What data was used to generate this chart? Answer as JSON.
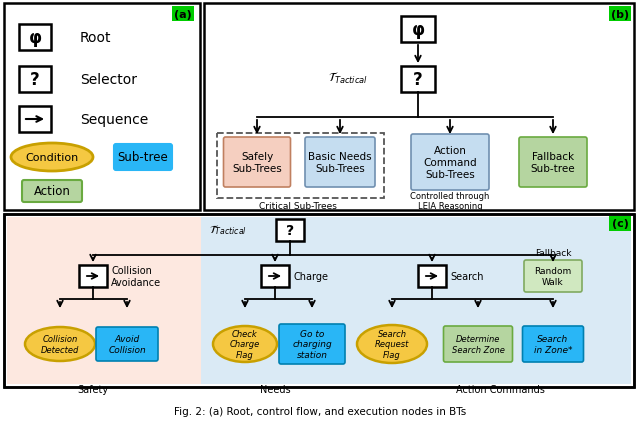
{
  "fig_width": 6.4,
  "fig_height": 4.27,
  "bg_white": "#ffffff",
  "bg_pink": "#fde8e0",
  "bg_blue": "#daeaf5",
  "panel_a": {
    "label_color": "#00cc00",
    "condition_color": "#f5c842",
    "condition_border": "#c8a000",
    "subtree_color": "#29b6f6",
    "action_color": "#b5d5a0",
    "action_border": "#6aaa40"
  },
  "panel_b": {
    "label_color": "#00cc00",
    "nodes": [
      {
        "text": "Safely\nSub-Trees",
        "color": "#f5cfc0",
        "border": "#c08060"
      },
      {
        "text": "Basic Needs\nSub-Trees",
        "color": "#c5ddf0",
        "border": "#7090b0"
      },
      {
        "text": "Action\nCommand\nSub-Trees",
        "color": "#c5ddf0",
        "border": "#7090b0"
      },
      {
        "text": "Fallback\nSub-tree",
        "color": "#b5d5a0",
        "border": "#6aaa40"
      }
    ]
  },
  "panel_c": {
    "label_color": "#00cc00",
    "bg_pink": "#fde8e0",
    "bg_blue": "#daeaf5",
    "random_walk_color": "#d0e8c0",
    "random_walk_border": "#80aa60",
    "condition_color": "#f5c842",
    "condition_border": "#c8a000",
    "action_blue": "#29b6f6",
    "action_blue_border": "#0080b0",
    "action_green": "#b5d5a0",
    "action_green_border": "#6aaa40"
  }
}
